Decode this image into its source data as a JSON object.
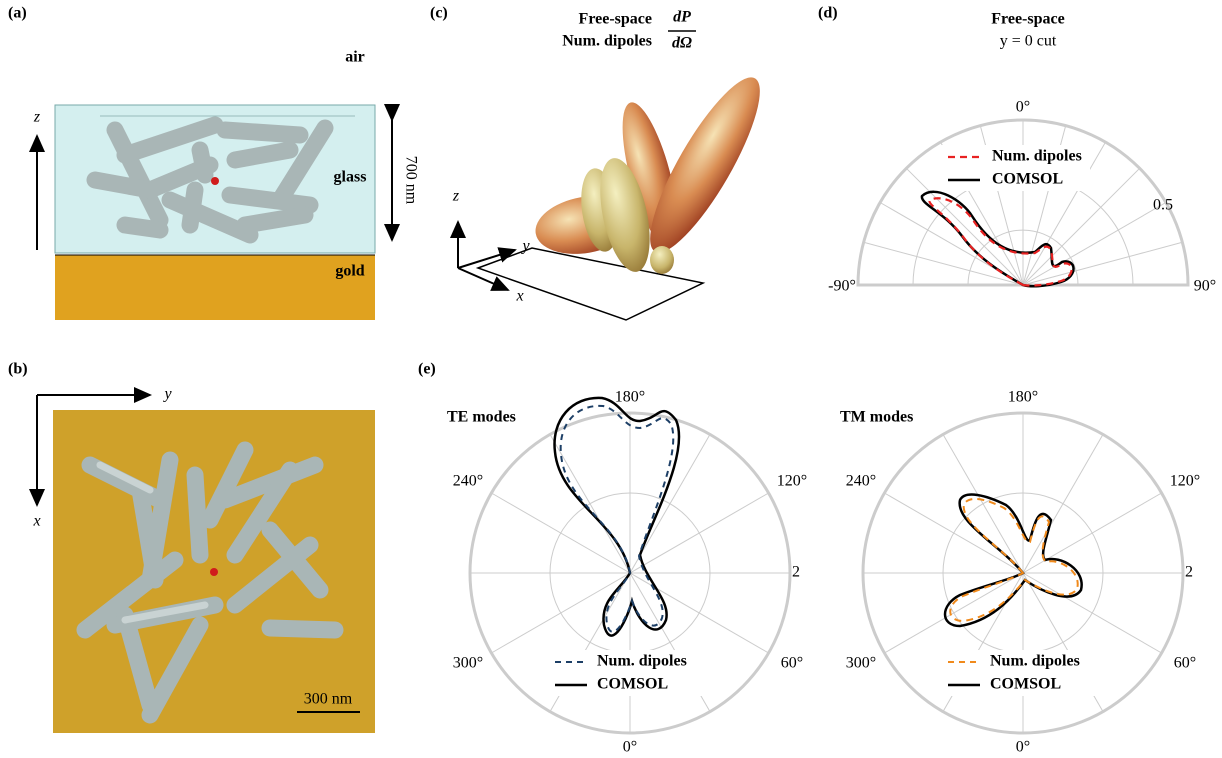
{
  "panels": {
    "a": {
      "label": "(a)",
      "air": "air",
      "glass": "glass",
      "gold": "gold",
      "axis": "z",
      "height": "700 nm"
    },
    "b": {
      "label": "(b)",
      "horizontal_axis": "y",
      "vertical_axis": "x",
      "scale_bar": "300 nm"
    },
    "c": {
      "label": "(c)",
      "title_1": "Free-space",
      "title_2": "Num. dipoles",
      "fraction_top": "dP",
      "fraction_bottom": "dΩ",
      "axis_z": "z",
      "axis_y": "y",
      "axis_x": "x"
    },
    "d": {
      "label": "(d)",
      "title": "Free-space",
      "subtitle": "y = 0 cut",
      "ticks": [
        "0°",
        "0.5",
        "-90°",
        "90°"
      ],
      "legend": [
        "Num. dipoles",
        "COMSOL"
      ]
    },
    "e": {
      "label": "(e)",
      "te": {
        "title": "TE modes",
        "ticks": [
          "180°",
          "240°",
          "120°",
          "2",
          "300°",
          "60°",
          "0°"
        ],
        "legend": [
          "Num. dipoles",
          "COMSOL"
        ]
      },
      "tm": {
        "title": "TM modes",
        "ticks": [
          "180°",
          "240°",
          "120°",
          "2",
          "300°",
          "60°",
          "0°"
        ],
        "legend": [
          "Num. dipoles",
          "COMSOL"
        ]
      }
    }
  }
}
